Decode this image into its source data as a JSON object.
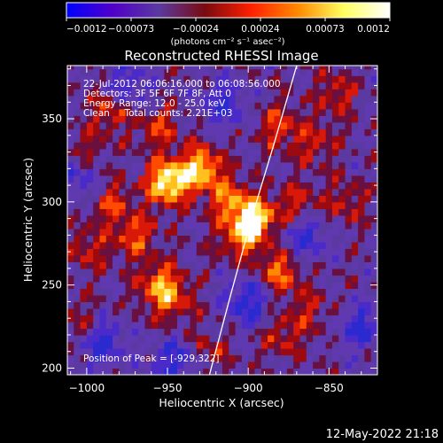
{
  "chart_data": {
    "type": "heatmap",
    "title": "Reconstructed RHESSI Image",
    "xlabel": "Heliocentric X (arcsec)",
    "ylabel": "Heliocentric Y (arcsec)",
    "xlim": [
      -1012,
      -820
    ],
    "ylim": [
      196,
      382
    ],
    "x_ticks": [
      {
        "value": -1000,
        "label": "−1000"
      },
      {
        "value": -950,
        "label": "−950"
      },
      {
        "value": -900,
        "label": "−900"
      },
      {
        "value": -850,
        "label": "−850"
      }
    ],
    "y_ticks": [
      {
        "value": 200,
        "label": "200"
      },
      {
        "value": 250,
        "label": "250"
      },
      {
        "value": 300,
        "label": "300"
      },
      {
        "value": 350,
        "label": "350"
      }
    ],
    "colorbar": {
      "range": [
        -0.0012,
        0.0012
      ],
      "tick_labels": [
        "−0.0012",
        "−0.00073",
        "−0.00024",
        "0.00024",
        "0.00073",
        "0.0012"
      ],
      "unit_label": "(photons cm⁻² s⁻¹ asec⁻²)",
      "stops": [
        "#0000ff",
        "#5000c8",
        "#5a3aa0",
        "#7a0a10",
        "#ff2000",
        "#ff8800",
        "#ffff60",
        "#ffffff"
      ]
    },
    "annotations": [
      "22-Jul-2012 06:06:16.000 to 06:08:56.000",
      "Detectors: 3F 5F 6F 7F 8F, Att 0",
      "Energy Range: 12.0 - 25.0 keV",
      "Clean     Total counts: 2.21E+03"
    ],
    "peak_label": "Position of Peak = [-929,322]",
    "limb_curve": [
      [
        -924,
        196
      ],
      [
        -912,
        240
      ],
      [
        -898,
        290
      ],
      [
        -884,
        335
      ],
      [
        -870,
        382
      ]
    ],
    "sources": [
      {
        "x": -950,
        "y": 312,
        "peak": 1.0
      },
      {
        "x": -930,
        "y": 320,
        "peak": 0.85
      },
      {
        "x": -912,
        "y": 302,
        "peak": 0.55
      },
      {
        "x": -896,
        "y": 290,
        "peak": 0.9
      },
      {
        "x": -905,
        "y": 278,
        "peak": 0.5
      },
      {
        "x": -955,
        "y": 250,
        "peak": 0.65
      },
      {
        "x": -945,
        "y": 240,
        "peak": 0.35
      },
      {
        "x": -880,
        "y": 258,
        "peak": 0.6
      },
      {
        "x": -870,
        "y": 298,
        "peak": 0.4
      },
      {
        "x": -970,
        "y": 280,
        "peak": 0.5
      },
      {
        "x": -985,
        "y": 300,
        "peak": 0.4
      },
      {
        "x": -1000,
        "y": 272,
        "peak": 0.35
      },
      {
        "x": -985,
        "y": 355,
        "peak": 0.45
      },
      {
        "x": -955,
        "y": 345,
        "peak": 0.4
      },
      {
        "x": -880,
        "y": 345,
        "peak": 0.45
      },
      {
        "x": -858,
        "y": 335,
        "peak": 0.35
      },
      {
        "x": -845,
        "y": 365,
        "peak": 0.35
      },
      {
        "x": -840,
        "y": 300,
        "peak": 0.3
      },
      {
        "x": -925,
        "y": 212,
        "peak": 0.3
      },
      {
        "x": -880,
        "y": 220,
        "peak": 0.35
      },
      {
        "x": -862,
        "y": 235,
        "peak": 0.3
      },
      {
        "x": -1000,
        "y": 330,
        "peak": 0.3
      },
      {
        "x": -1005,
        "y": 230,
        "peak": 0.25
      }
    ],
    "negative_sources": [
      {
        "x": -990,
        "y": 215,
        "depth": 0.55
      },
      {
        "x": -945,
        "y": 205,
        "depth": 0.5
      },
      {
        "x": -900,
        "y": 240,
        "depth": 0.55
      },
      {
        "x": -915,
        "y": 360,
        "depth": 0.5
      },
      {
        "x": -865,
        "y": 280,
        "depth": 0.5
      },
      {
        "x": -830,
        "y": 225,
        "depth": 0.5
      },
      {
        "x": -975,
        "y": 370,
        "depth": 0.45
      },
      {
        "x": -1005,
        "y": 315,
        "depth": 0.45
      }
    ]
  },
  "footer": {
    "timestamp": "12-May-2022 21:18"
  }
}
